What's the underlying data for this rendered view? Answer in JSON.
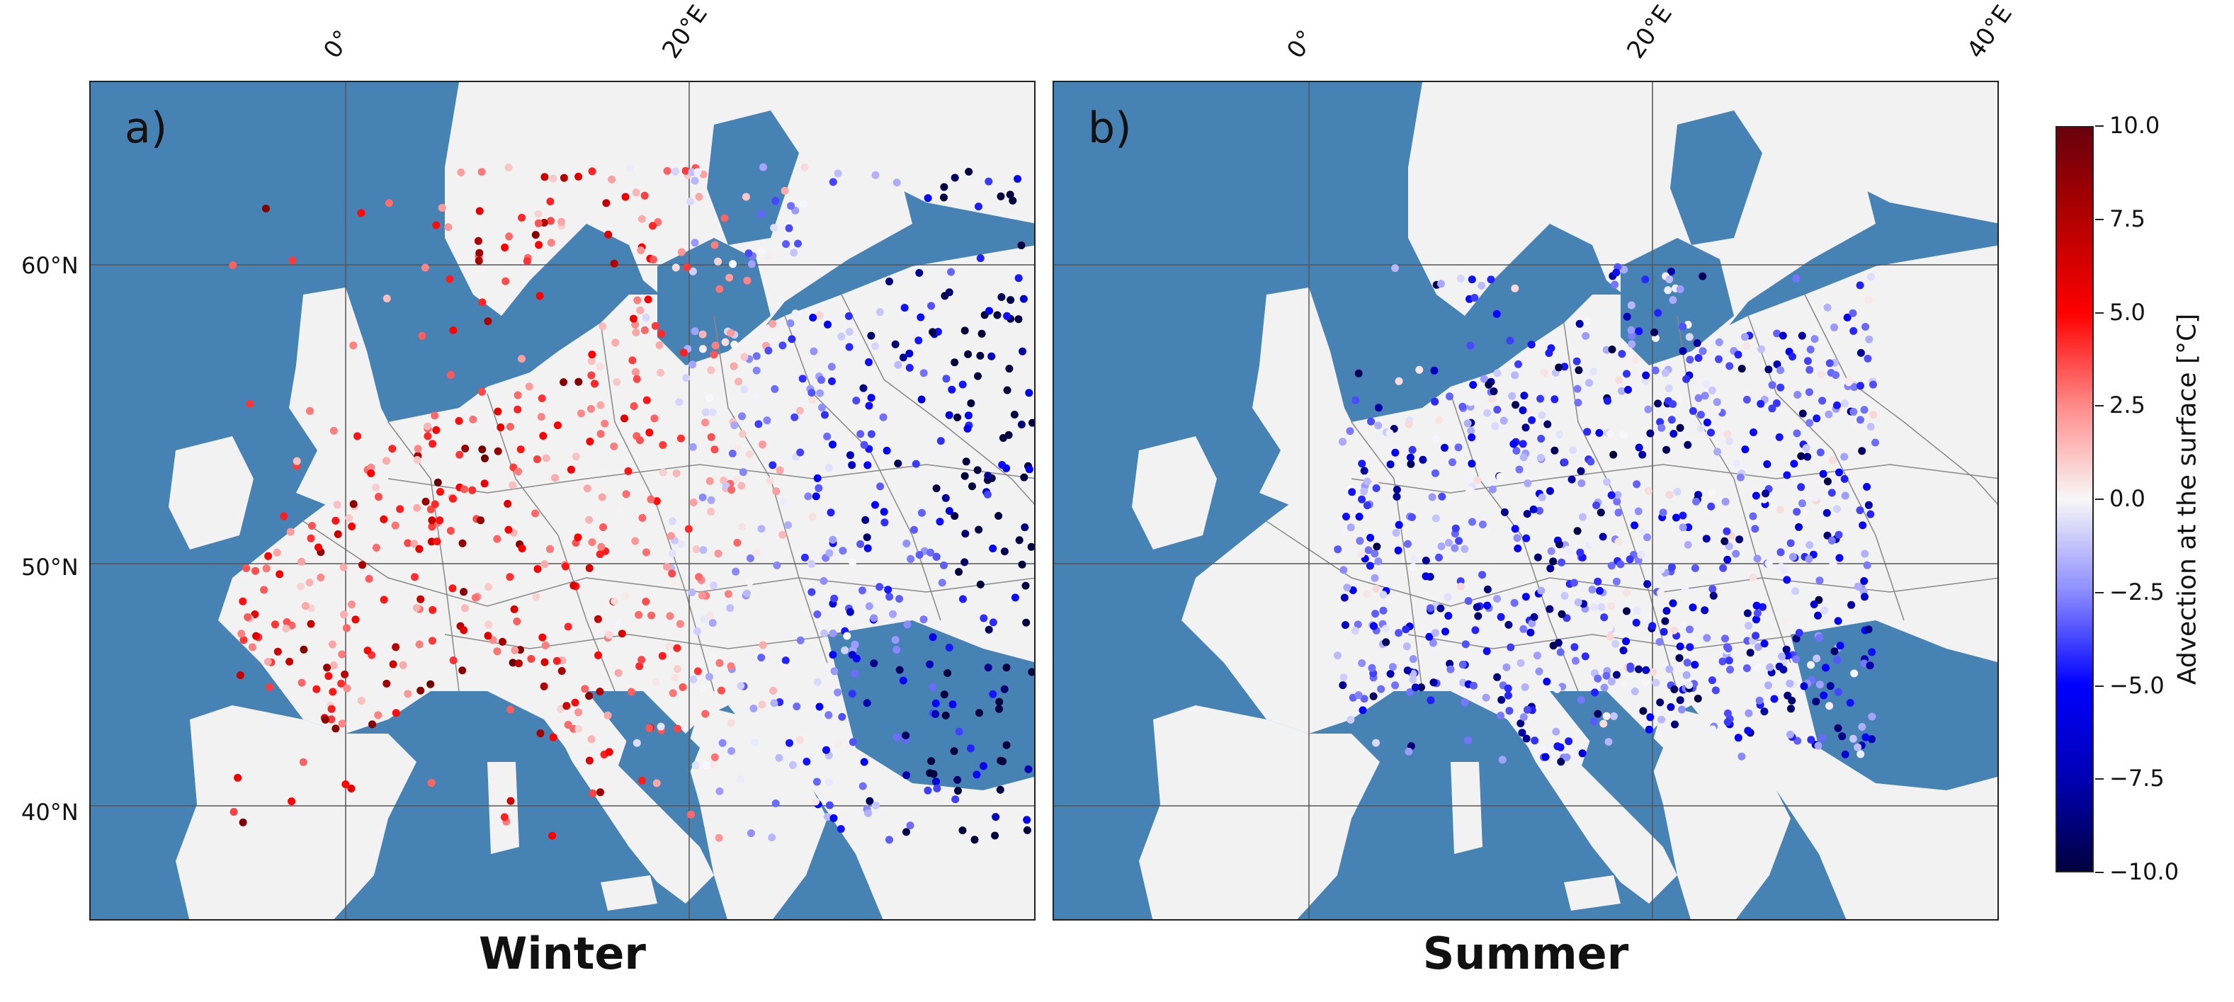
{
  "panels": [
    {
      "label": "a)",
      "title": "Winter",
      "bias": "warm"
    },
    {
      "label": "b)",
      "title": "Summer",
      "bias": "cool"
    }
  ],
  "axes": {
    "lon_labels": [
      "0°",
      "20°E",
      "40°E"
    ],
    "lat_labels": [
      "60°N",
      "50°N",
      "40°N"
    ]
  },
  "colorbar": {
    "title": "Advection at the surface [°C]",
    "ticks": [
      "10.0",
      "7.5",
      "5.0",
      "2.5",
      "0.0",
      "−2.5",
      "−5.0",
      "−7.5",
      "−10.0"
    ],
    "min": -10.0,
    "max": 10.0,
    "colors": [
      "#67000d",
      "#ff0000",
      "#f7f7f7",
      "#0000ff",
      "#00003f"
    ]
  },
  "style": {
    "sea": "#4682b4",
    "land": "#f2f2f2",
    "border": "#888888",
    "grid": "#555555"
  }
}
